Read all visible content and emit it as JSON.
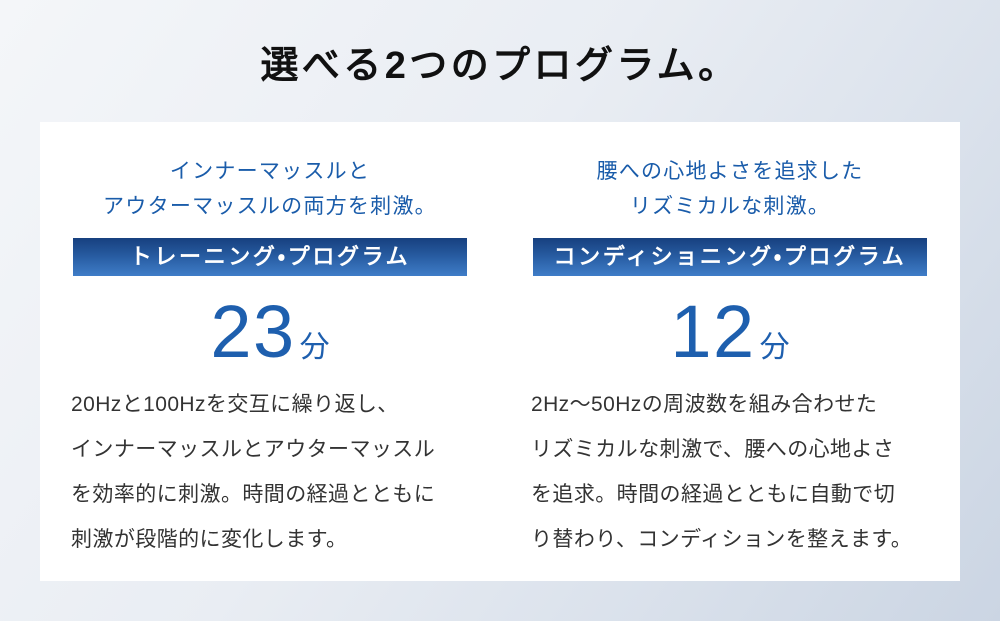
{
  "page": {
    "title": "選べる2つのプログラム。"
  },
  "colors": {
    "background_top_left": "#f4f6f9",
    "background_bottom_right": "#cbd5e3",
    "card_background": "#ffffff",
    "accent_blue_text": "#1a5caa",
    "duration_blue": "#1e5fae",
    "banner_gradient_top": "#17407f",
    "banner_gradient_bottom": "#3f7dc8",
    "banner_text": "#ffffff",
    "body_text": "#333333",
    "title_text": "#111111"
  },
  "programs": [
    {
      "headline_lines": [
        "インナーマッスルと",
        "アウターマッスルの両方を刺激。"
      ],
      "banner_label": "トレーニング・プログラム",
      "duration_value": "23",
      "duration_unit": "分",
      "description_lines": [
        "20Hzと100Hzを交互に繰り返し、",
        "インナーマッスルとアウターマッスル",
        "を効率的に刺激。時間の経過とともに",
        "刺激が段階的に変化します。"
      ]
    },
    {
      "headline_lines": [
        "腰への心地よさを追求した",
        "リズミカルな刺激。"
      ],
      "banner_label": "コンディショニング・プログラム",
      "duration_value": "12",
      "duration_unit": "分",
      "description_lines": [
        "2Hz～50Hzの周波数を組み合わせた",
        "リズミカルな刺激で、腰への心地よさ",
        "を追求。時間の経過とともに自動で切",
        "り替わり、コンディションを整えます。"
      ]
    }
  ]
}
